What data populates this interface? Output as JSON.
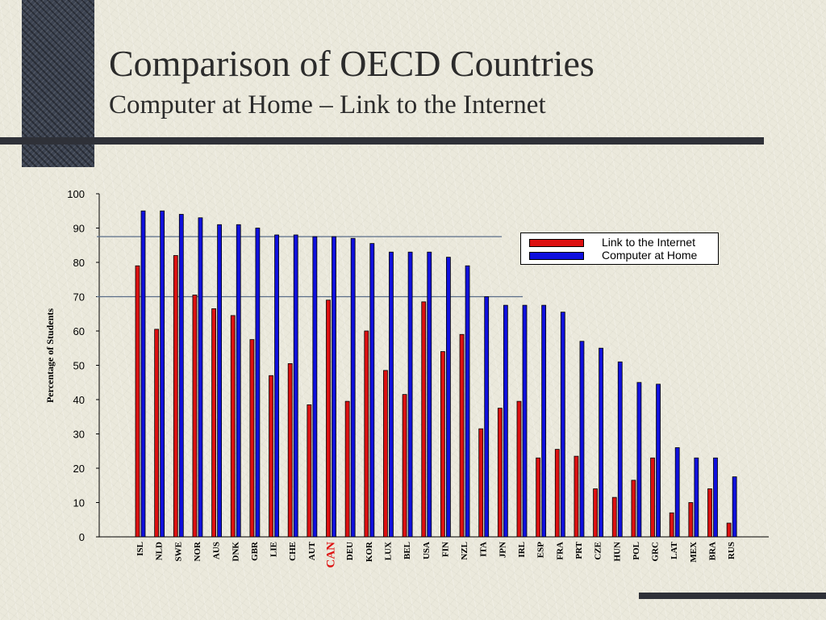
{
  "slide": {
    "title": "Comparison of OECD Countries",
    "subtitle": "Computer at Home – Link to the Internet"
  },
  "colors": {
    "internet": "#dd1111",
    "computer": "#1010dd",
    "highlight_label": "#dd1111"
  },
  "chart_data": {
    "type": "bar",
    "ylabel": "Percentage of Students",
    "ylim": [
      0,
      100
    ],
    "yticks": [
      0,
      10,
      20,
      30,
      40,
      50,
      60,
      70,
      80,
      90,
      100
    ],
    "reference_lines": [
      70,
      87.5
    ],
    "highlight_category": "CAN",
    "legend_position": "top-right",
    "categories": [
      "ISL",
      "NLD",
      "SWE",
      "NOR",
      "AUS",
      "DNK",
      "GBR",
      "LIE",
      "CHE",
      "AUT",
      "CAN",
      "DEU",
      "KOR",
      "LUX",
      "BEL",
      "USA",
      "FIN",
      "NZL",
      "ITA",
      "JPN",
      "IRL",
      "ESP",
      "FRA",
      "PRT",
      "CZE",
      "HUN",
      "POL",
      "GRC",
      "LAT",
      "MEX",
      "BRA",
      "RUS"
    ],
    "series": [
      {
        "name": "Link to the Internet",
        "color": "#dd1111",
        "values": [
          79,
          60.5,
          82,
          70.5,
          66.5,
          64.5,
          57.5,
          47,
          50.5,
          38.5,
          69,
          39.5,
          60,
          48.5,
          41.5,
          68.5,
          54,
          59,
          31.5,
          37.5,
          39.5,
          23,
          25.5,
          23.5,
          14,
          11.5,
          16.5,
          23,
          7,
          10,
          14,
          4
        ]
      },
      {
        "name": "Computer at Home",
        "color": "#1010dd",
        "values": [
          95,
          95,
          94,
          93,
          91,
          91,
          90,
          88,
          88,
          87.5,
          87.5,
          87,
          85.5,
          83,
          83,
          83,
          81.5,
          79,
          70,
          67.5,
          67.5,
          67.5,
          65.5,
          57,
          55,
          51,
          45,
          44.5,
          26,
          23,
          23,
          17.5
        ]
      }
    ]
  }
}
